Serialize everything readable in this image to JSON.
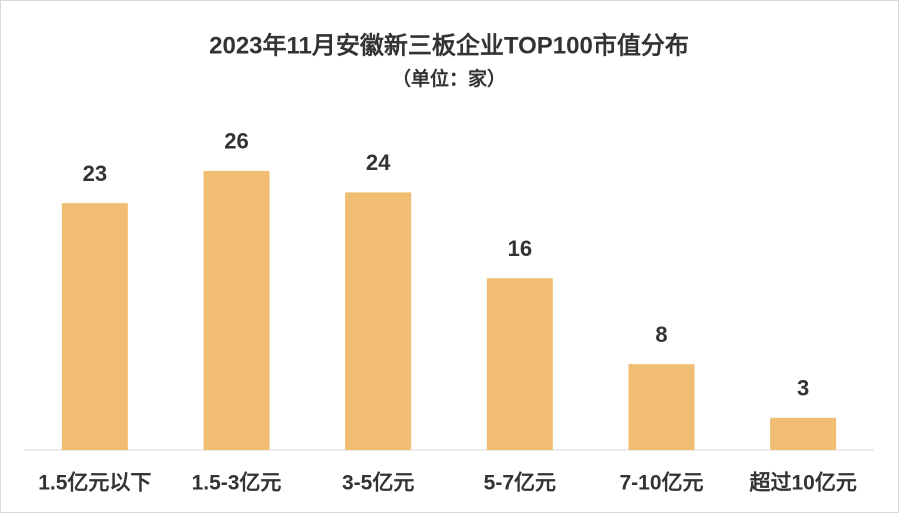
{
  "chart_data": {
    "type": "bar",
    "title": "2023年11月安徽新三板企业TOP100市值分布",
    "subtitle": "（单位：家）",
    "categories": [
      "1.5亿元以下",
      "1.5-3亿元",
      "3-5亿元",
      "5-7亿元",
      "7-10亿元",
      "超过10亿元"
    ],
    "values": [
      23,
      26,
      24,
      16,
      8,
      3
    ],
    "color": "#f0bd72",
    "ylim": [
      0,
      30
    ]
  }
}
